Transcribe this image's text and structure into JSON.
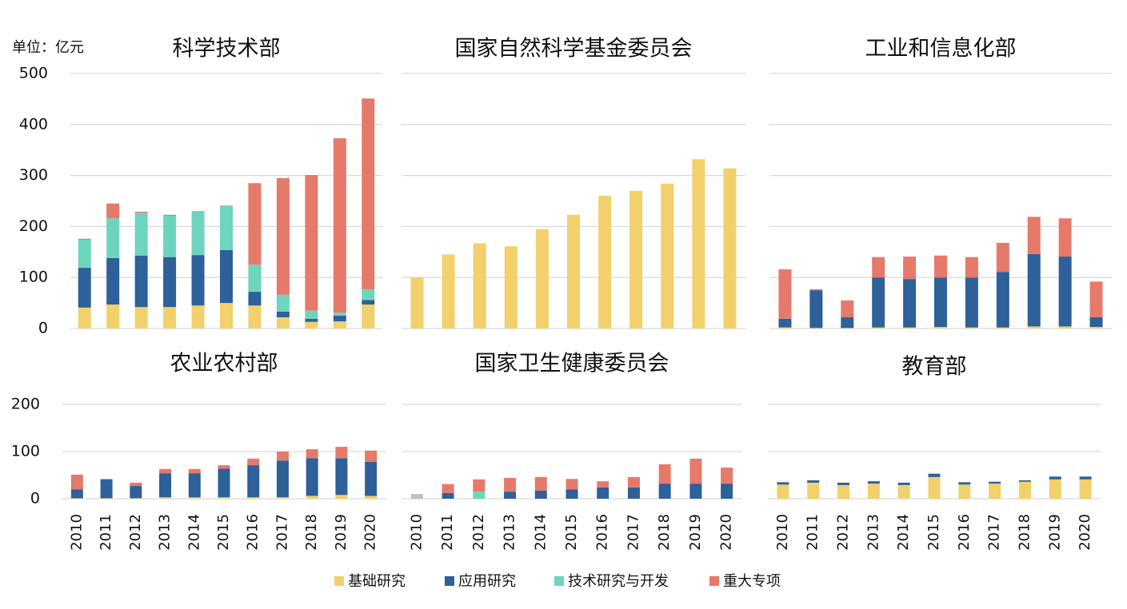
{
  "unit_label": "单位：亿元",
  "chart_data": [
    {
      "type": "bar",
      "stacked": true,
      "title": "科学技术部",
      "ylim": [
        0,
        500
      ],
      "yticks": [
        0,
        100,
        200,
        300,
        400,
        500
      ],
      "grid": true,
      "series": [
        {
          "name": "基础研究",
          "color": "#f2d06b",
          "values": [
            41,
            47,
            42,
            42,
            45,
            50,
            45,
            22,
            13,
            14,
            47
          ]
        },
        {
          "name": "应用研究",
          "color": "#2e6099",
          "values": [
            78,
            91,
            101,
            98,
            99,
            104,
            27,
            11,
            6,
            11,
            9
          ]
        },
        {
          "name": "技术研究与开发",
          "color": "#6dd5bd",
          "values": [
            55,
            78,
            84,
            81,
            85,
            86,
            53,
            33,
            16,
            6,
            21
          ]
        },
        {
          "name": "重大专项",
          "color": "#e57a6a",
          "values": [
            2,
            29,
            2,
            2,
            1,
            1,
            160,
            229,
            266,
            342,
            374
          ]
        }
      ]
    },
    {
      "type": "bar",
      "stacked": true,
      "title": "国家自然科学基金委员会",
      "ylim": [
        0,
        500
      ],
      "yticks": [
        0,
        100,
        200,
        300,
        400,
        500
      ],
      "grid": true,
      "series": [
        {
          "name": "基础研究",
          "color": "#f2d06b",
          "values": [
            100,
            145,
            167,
            161,
            195,
            223,
            260,
            270,
            284,
            332,
            314
          ]
        }
      ]
    },
    {
      "type": "bar",
      "stacked": true,
      "title": "工业和信息化部",
      "ylim": [
        0,
        500
      ],
      "yticks": [
        0,
        100,
        200,
        300,
        400,
        500
      ],
      "grid": true,
      "series": [
        {
          "name": "基础研究",
          "color": "#f2d06b",
          "values": [
            2,
            1,
            1,
            2,
            2,
            3,
            2,
            2,
            4,
            4,
            3
          ]
        },
        {
          "name": "应用研究",
          "color": "#2e6099",
          "values": [
            17,
            74,
            21,
            98,
            95,
            97,
            98,
            109,
            142,
            137,
            19
          ]
        },
        {
          "name": "重大专项",
          "color": "#e57a6a",
          "values": [
            97,
            2,
            33,
            40,
            44,
            43,
            40,
            57,
            73,
            75,
            70
          ]
        }
      ]
    },
    {
      "type": "bar",
      "stacked": true,
      "title": "农业农村部",
      "categories": [
        "2010",
        "2011",
        "2012",
        "2013",
        "2014",
        "2015",
        "2016",
        "2017",
        "2018",
        "2019",
        "2020"
      ],
      "ylim": [
        0,
        200
      ],
      "yticks": [
        0,
        100,
        200
      ],
      "grid": true,
      "series": [
        {
          "name": "基础研究",
          "color": "#f2d06b",
          "values": [
            1,
            1,
            1,
            3,
            3,
            3,
            3,
            3,
            6,
            8,
            6
          ]
        },
        {
          "name": "应用研究",
          "color": "#2e6099",
          "values": [
            19,
            40,
            26,
            51,
            51,
            61,
            68,
            78,
            80,
            78,
            72
          ]
        },
        {
          "name": "重大专项",
          "color": "#e57a6a",
          "values": [
            31,
            1,
            7,
            9,
            9,
            7,
            14,
            19,
            19,
            24,
            24
          ]
        }
      ]
    },
    {
      "type": "bar",
      "stacked": true,
      "title": "国家卫生健康委员会",
      "categories": [
        "2010",
        "2011",
        "2012",
        "2013",
        "2014",
        "2015",
        "2016",
        "2017",
        "2018",
        "2019",
        "2020"
      ],
      "ylim": [
        0,
        200
      ],
      "yticks": [
        0,
        100,
        200
      ],
      "grid": true,
      "series": [
        {
          "name": null,
          "color": "#bfbfbf",
          "values": [
            10,
            0,
            0,
            0,
            0,
            0,
            0,
            0,
            0,
            0,
            0
          ]
        },
        {
          "name": "应用研究",
          "color": "#2e6099",
          "values": [
            0,
            12,
            0,
            15,
            17,
            20,
            24,
            24,
            32,
            32,
            32
          ]
        },
        {
          "name": "技术研究与开发",
          "color": "#6dd5bd",
          "values": [
            0,
            0,
            15,
            0,
            0,
            0,
            0,
            0,
            0,
            0,
            0
          ]
        },
        {
          "name": "重大专项",
          "color": "#e57a6a",
          "values": [
            0,
            19,
            26,
            29,
            29,
            22,
            13,
            22,
            41,
            53,
            34
          ]
        }
      ]
    },
    {
      "type": "bar",
      "stacked": true,
      "title": "教育部",
      "categories": [
        "2010",
        "2011",
        "2012",
        "2013",
        "2014",
        "2015",
        "2016",
        "2017",
        "2018",
        "2019",
        "2020"
      ],
      "ylim": [
        0,
        200
      ],
      "yticks": [
        0,
        100,
        200
      ],
      "grid": true,
      "series": [
        {
          "name": "基础研究",
          "color": "#f2d06b",
          "values": [
            30,
            34,
            29,
            32,
            29,
            46,
            30,
            32,
            36,
            41,
            41
          ]
        },
        {
          "name": "应用研究",
          "color": "#2e6099",
          "values": [
            5,
            5,
            5,
            5,
            5,
            7,
            5,
            4,
            3,
            6,
            6
          ]
        }
      ]
    }
  ]
}
